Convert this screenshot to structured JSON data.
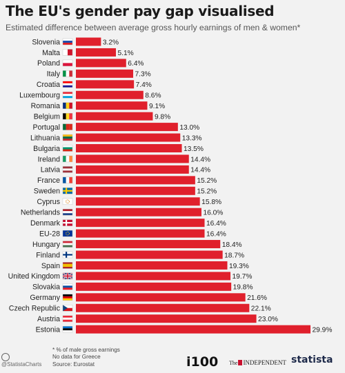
{
  "chart_data": {
    "type": "bar",
    "orientation": "horizontal",
    "title": "The EU's gender pay gap visualised",
    "subtitle": "Estimated difference between average gross hourly earnings of men & women*",
    "categories": [
      "Slovenia",
      "Malta",
      "Poland",
      "Italy",
      "Croatia",
      "Luxembourg",
      "Romania",
      "Belgium",
      "Portugal",
      "Lithuania",
      "Bulgaria",
      "Ireland",
      "Latvia",
      "France",
      "Sweden",
      "Cyprus",
      "Netherlands",
      "Denmark",
      "EU-28",
      "Hungary",
      "Finland",
      "Spain",
      "United Kingdom",
      "Slovakia",
      "Germany",
      "Czech Republic",
      "Austria",
      "Estonia"
    ],
    "values": [
      3.2,
      5.1,
      6.4,
      7.3,
      7.4,
      8.6,
      9.1,
      9.8,
      13.0,
      13.3,
      13.5,
      14.4,
      14.4,
      15.2,
      15.2,
      15.8,
      16.0,
      16.4,
      16.4,
      18.4,
      18.7,
      19.3,
      19.7,
      19.8,
      21.6,
      22.1,
      23.0,
      29.9
    ],
    "value_labels": [
      "3.2%",
      "5.1%",
      "6.4%",
      "7.3%",
      "7.4%",
      "8.6%",
      "9.1%",
      "9.8%",
      "13.0%",
      "13.3%",
      "13.5%",
      "14.4%",
      "14.4%",
      "15.2%",
      "15.2%",
      "15.8%",
      "16.0%",
      "16.4%",
      "16.4%",
      "18.4%",
      "18.7%",
      "19.3%",
      "19.7%",
      "19.8%",
      "21.6%",
      "22.1%",
      "23.0%",
      "29.9%"
    ],
    "xlim": [
      0,
      30
    ],
    "grid": false,
    "legend": "none",
    "bar_color": "#e0202c",
    "xlabel": "",
    "ylabel": ""
  },
  "footnotes": {
    "line1": "* % of male gross earnings",
    "line2": "No data for Greece",
    "line3": "Source: Eurostat"
  },
  "credit": "@StatistaCharts",
  "logos": {
    "i100": "i100",
    "independent_the": "The",
    "independent_name": "INDEPENDENT",
    "statista": "statista"
  }
}
